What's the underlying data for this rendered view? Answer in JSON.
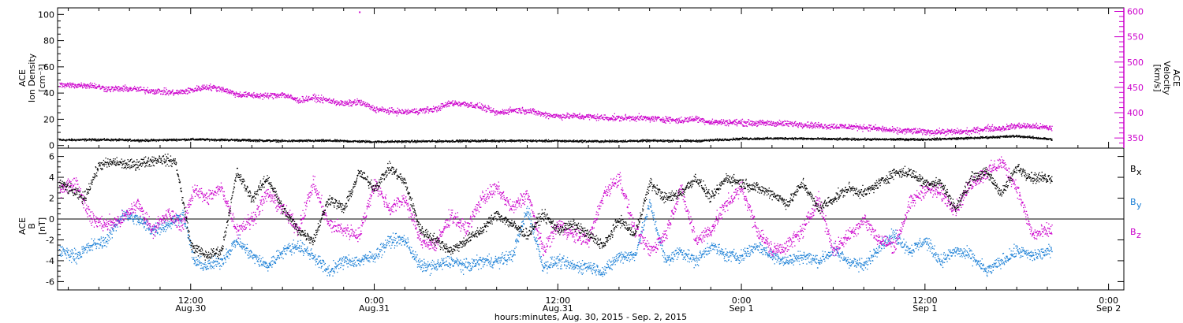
{
  "colors": {
    "axes": "#000000",
    "density": "#000000",
    "velocity": "#cc00cc",
    "bx": "#000000",
    "by": "#1a7fd6",
    "bz": "#cc00cc",
    "background": "#ffffff"
  },
  "xlabel": "hours:minutes, Aug. 30, 2015 - Sep.  2, 2015",
  "x_ticks": [
    {
      "hour": 12,
      "line1": "12:00",
      "line2": "Aug.30"
    },
    {
      "hour": 24,
      "line1": "0:00",
      "line2": "Aug.31"
    },
    {
      "hour": 36,
      "line1": "12:00",
      "line2": "Aug.31"
    },
    {
      "hour": 48,
      "line1": "0:00",
      "line2": "Sep 1"
    },
    {
      "hour": 60,
      "line1": "12:00",
      "line2": "Sep 1"
    },
    {
      "hour": 72,
      "line1": "0:00",
      "line2": "Sep 2"
    }
  ],
  "chart_data": [
    {
      "type": "scatter",
      "panel": "top",
      "x_unit": "hours since 2015-08-30 00:00 UT",
      "xlim": [
        3.3,
        73.0
      ],
      "ylabel": [
        "ACE",
        "Ion Density",
        "[cm⁻³]"
      ],
      "ylim": [
        -2,
        105
      ],
      "yticks": [
        0,
        20,
        40,
        60,
        80,
        100
      ],
      "y2label": [
        "ACE",
        "Velocity",
        "[km/s]"
      ],
      "y2lim": [
        330,
        607
      ],
      "y2ticks": [
        350,
        400,
        450,
        500,
        550,
        600
      ],
      "series": [
        {
          "name": "Ion Density",
          "axis": "left",
          "x": [
            3.4,
            6,
            9,
            12,
            15,
            18,
            21,
            24,
            27,
            30,
            33,
            36,
            39,
            42,
            45,
            48,
            51,
            54,
            57,
            60,
            63,
            66,
            68.3
          ],
          "y": [
            4.5,
            4.8,
            4.2,
            5.0,
            4.5,
            3.8,
            4.0,
            3.2,
            3.5,
            3.8,
            4.0,
            3.8,
            3.5,
            4.0,
            3.8,
            5.5,
            5.8,
            5.2,
            5.0,
            5.0,
            6.0,
            7.5,
            5.0
          ]
        },
        {
          "name": "Velocity",
          "axis": "right",
          "x": [
            3.4,
            4.5,
            5.5,
            6.5,
            8,
            9.5,
            11,
            12,
            13,
            14,
            15,
            16,
            17,
            18,
            19,
            20,
            21,
            22,
            23,
            24,
            25,
            26,
            27,
            28,
            29,
            30,
            31,
            32,
            33,
            34,
            35,
            36,
            37,
            38,
            39,
            40,
            41,
            42,
            43,
            44,
            45,
            46,
            47,
            48,
            49,
            50,
            51,
            52,
            53,
            54,
            55,
            56,
            57,
            58,
            59,
            60,
            61,
            62,
            63,
            64,
            65,
            66,
            67,
            68.3
          ],
          "y": [
            455,
            455,
            455,
            448,
            448,
            444,
            440,
            445,
            452,
            448,
            437,
            435,
            434,
            437,
            425,
            430,
            425,
            418,
            422,
            408,
            404,
            402,
            405,
            408,
            420,
            418,
            412,
            400,
            406,
            405,
            398,
            394,
            394,
            393,
            391,
            390,
            391,
            389,
            388,
            385,
            389,
            382,
            382,
            381,
            380,
            380,
            379,
            378,
            375,
            374,
            373,
            372,
            369,
            365,
            365,
            363,
            363,
            363,
            364,
            370,
            370,
            375,
            374,
            370
          ]
        },
        {
          "name": "",
          "axis": "right",
          "x": [
            23.0
          ],
          "y": [
            600
          ]
        }
      ]
    },
    {
      "type": "scatter",
      "panel": "bottom",
      "x_unit": "hours since 2015-08-30 00:00 UT",
      "xlim": [
        3.3,
        73.0
      ],
      "ylabel": [
        "ACE",
        "B",
        "[nT]"
      ],
      "ylim": [
        -6.8,
        6.8
      ],
      "yticks": [
        -6,
        -4,
        -2,
        0,
        2,
        4,
        6
      ],
      "series": [
        {
          "name": "Bx",
          "x": [
            3.4,
            5,
            6,
            7,
            8,
            9,
            10,
            11,
            12,
            13,
            14,
            15,
            16,
            17,
            18,
            19,
            20,
            21,
            22,
            23,
            24,
            25,
            26,
            27,
            28,
            29,
            30,
            31,
            32,
            33,
            34,
            35,
            36,
            37,
            38,
            39,
            40,
            41,
            42,
            43,
            44,
            45,
            46,
            47,
            48,
            49,
            50,
            51,
            52,
            53,
            54,
            55,
            56,
            57,
            58,
            59,
            60,
            61,
            62,
            63,
            64,
            65,
            66,
            67,
            68.3
          ],
          "y": [
            3.5,
            2.0,
            5.2,
            5.5,
            5.2,
            5.5,
            5.8,
            5.5,
            -2.5,
            -3.5,
            -3.0,
            4.5,
            2.0,
            4.0,
            1.0,
            -1.0,
            -2.0,
            2.0,
            1.0,
            4.5,
            3.0,
            5.0,
            3.5,
            -1.0,
            -2.0,
            -3.0,
            -2.0,
            -1.0,
            0.5,
            -0.5,
            -1.5,
            0.5,
            -1.0,
            -0.5,
            -1.5,
            -2.5,
            0.0,
            -1.5,
            3.5,
            2.0,
            2.5,
            4.0,
            2.0,
            4.0,
            3.5,
            3.0,
            2.5,
            1.5,
            3.5,
            1.0,
            2.0,
            3.0,
            2.5,
            3.5,
            4.5,
            4.5,
            3.5,
            3.5,
            1.0,
            4.0,
            4.5,
            2.5,
            5.0,
            4.0,
            4.0
          ]
        },
        {
          "name": "By",
          "x": [
            3.4,
            4.5,
            5.5,
            6.5,
            7.5,
            8.5,
            9.5,
            10.5,
            11.5,
            12.2,
            13,
            14,
            15,
            16,
            17,
            18,
            19,
            20,
            21,
            22,
            23,
            24,
            25,
            26,
            27,
            28,
            29,
            30,
            31,
            32,
            33,
            34,
            35,
            36,
            37,
            38,
            39,
            40,
            41,
            42,
            43,
            44,
            45,
            46,
            47,
            48,
            49,
            50,
            51,
            52,
            53,
            54,
            55,
            56,
            57,
            58,
            59,
            60,
            61,
            62,
            63,
            64,
            65,
            66,
            67,
            68.3
          ],
          "y": [
            -3.0,
            -3.5,
            -2.5,
            -2.0,
            0.5,
            0.0,
            -1.0,
            -0.5,
            0.5,
            -4.0,
            -4.5,
            -4.0,
            -2.0,
            -3.5,
            -4.5,
            -3.0,
            -2.5,
            -3.5,
            -5.0,
            -4.0,
            -4.0,
            -3.5,
            -2.0,
            -2.0,
            -4.5,
            -4.5,
            -4.0,
            -4.5,
            -4.0,
            -4.0,
            -3.5,
            1.0,
            -4.5,
            -4.0,
            -4.5,
            -4.5,
            -5.0,
            -3.5,
            -3.5,
            1.5,
            -4.0,
            -3.0,
            -4.0,
            -2.5,
            -3.5,
            -3.5,
            -2.5,
            -3.5,
            -4.0,
            -3.5,
            -4.0,
            -3.0,
            -4.0,
            -4.5,
            -2.5,
            -1.5,
            -3.0,
            -2.0,
            -4.0,
            -3.0,
            -3.5,
            -5.0,
            -4.0,
            -3.0,
            -3.5,
            -3.0
          ]
        },
        {
          "name": "Bz",
          "x": [
            3.4,
            4.5,
            5.5,
            6.5,
            7.5,
            8.5,
            9.5,
            10.5,
            11.5,
            12.2,
            13,
            14,
            15,
            16,
            17,
            18,
            19,
            20,
            21,
            22,
            23,
            24,
            25,
            26,
            27,
            28,
            29,
            30,
            31,
            32,
            33,
            34,
            35,
            36,
            37,
            38,
            39,
            40,
            41,
            42,
            43,
            44,
            45,
            46,
            47,
            48,
            49,
            50,
            51,
            52,
            53,
            54,
            55,
            56,
            57,
            58,
            59,
            60,
            61,
            62,
            63,
            64,
            65,
            66,
            67,
            68.3
          ],
          "y": [
            3.0,
            3.5,
            0.0,
            -0.5,
            0.0,
            1.5,
            -1.0,
            0.5,
            -0.5,
            3.0,
            2.0,
            3.0,
            -1.0,
            0.0,
            2.5,
            1.0,
            -1.0,
            3.5,
            -0.5,
            -1.0,
            -1.5,
            3.5,
            1.0,
            2.0,
            -2.0,
            -2.5,
            0.5,
            -1.0,
            2.0,
            3.0,
            1.0,
            2.5,
            -3.0,
            -0.5,
            -1.5,
            -2.0,
            2.5,
            4.0,
            -1.0,
            -3.0,
            -1.5,
            3.0,
            -2.0,
            -1.0,
            1.5,
            3.0,
            -1.0,
            -3.0,
            -2.5,
            -1.0,
            2.0,
            -3.0,
            -1.5,
            0.0,
            -2.0,
            -2.5,
            1.5,
            3.0,
            2.5,
            1.0,
            3.5,
            4.5,
            5.5,
            3.0,
            -1.5,
            -1.0
          ]
        }
      ],
      "legend": [
        "B",
        "B",
        "B"
      ],
      "legend_sub": [
        "x",
        "y",
        "z"
      ],
      "legend_placement": "right",
      "zero_line": true
    }
  ]
}
